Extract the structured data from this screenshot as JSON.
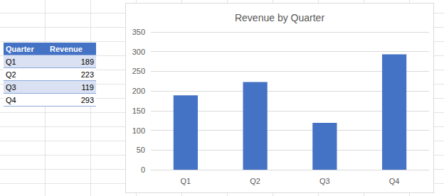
{
  "table": {
    "header": [
      "Quarter",
      "Revenue"
    ],
    "rows": [
      [
        "Q1",
        189
      ],
      [
        "Q2",
        223
      ],
      [
        "Q3",
        119
      ],
      [
        "Q4",
        293
      ]
    ]
  },
  "chart_data": {
    "type": "bar",
    "title": "Revenue by Quarter",
    "categories": [
      "Q1",
      "Q2",
      "Q3",
      "Q4"
    ],
    "values": [
      189,
      223,
      119,
      293
    ],
    "color": "#4472c4",
    "ylim": [
      0,
      350
    ],
    "yticks": [
      0,
      50,
      100,
      150,
      200,
      250,
      300,
      350
    ],
    "grid": true
  }
}
